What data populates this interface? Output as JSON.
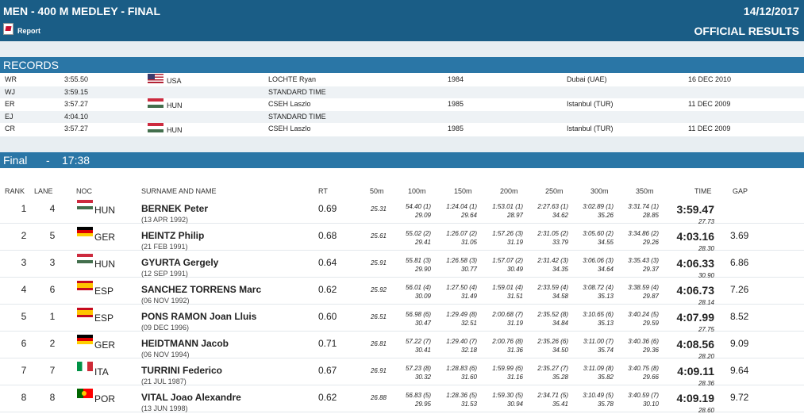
{
  "header": {
    "title": "MEN - 400 M MEDLEY - FINAL",
    "date": "14/12/2017",
    "official": "OFFICIAL RESULTS",
    "report_label": "Report"
  },
  "records": {
    "title": "RECORDS",
    "rows": [
      {
        "code": "WR",
        "time": "3:55.50",
        "noc": "USA",
        "flag": "usa",
        "name": "LOCHTE Ryan",
        "year": "1984",
        "place": "Dubai (UAE)",
        "date": "16 DEC 2010"
      },
      {
        "code": "WJ",
        "time": "3:59.15",
        "noc": "",
        "flag": "",
        "name": "STANDARD TIME",
        "year": "",
        "place": "",
        "date": ""
      },
      {
        "code": "ER",
        "time": "3:57.27",
        "noc": "HUN",
        "flag": "hun",
        "name": "CSEH Laszlo",
        "year": "1985",
        "place": "Istanbul (TUR)",
        "date": "11 DEC 2009"
      },
      {
        "code": "EJ",
        "time": "4:04.10",
        "noc": "",
        "flag": "",
        "name": "STANDARD TIME",
        "year": "",
        "place": "",
        "date": ""
      },
      {
        "code": "CR",
        "time": "3:57.27",
        "noc": "HUN",
        "flag": "hun",
        "name": "CSEH Laszlo",
        "year": "1985",
        "place": "Istanbul (TUR)",
        "date": "11 DEC 2009"
      }
    ]
  },
  "final": {
    "label": "Final",
    "separator": "-",
    "time": "17:38"
  },
  "columns": {
    "rank": "RANK",
    "lane": "LANE",
    "noc": "NOC",
    "name": "SURNAME AND NAME",
    "rt": "RT",
    "s50": "50m",
    "s100": "100m",
    "s150": "150m",
    "s200": "200m",
    "s250": "250m",
    "s300": "300m",
    "s350": "350m",
    "time": "TIME",
    "gap": "GAP"
  },
  "results": [
    {
      "rank": "1",
      "lane": "4",
      "flag": "hun",
      "noc": "HUN",
      "name": "BERNEK Peter",
      "dob": "(13 APR 1992)",
      "rt": "0.69",
      "s50": "25.31",
      "splits": [
        [
          "54.40 (1)",
          "29.09"
        ],
        [
          "1:24.04 (1)",
          "29.64"
        ],
        [
          "1:53.01 (1)",
          "28.97"
        ],
        [
          "2:27.63 (1)",
          "34.62"
        ],
        [
          "3:02.89 (1)",
          "35.26"
        ],
        [
          "3:31.74 (1)",
          "28.85"
        ]
      ],
      "time": "3:59.47",
      "last": "27.73",
      "gap": ""
    },
    {
      "rank": "2",
      "lane": "5",
      "flag": "ger",
      "noc": "GER",
      "name": "HEINTZ Philip",
      "dob": "(21 FEB 1991)",
      "rt": "0.68",
      "s50": "25.61",
      "splits": [
        [
          "55.02 (2)",
          "29.41"
        ],
        [
          "1:26.07 (2)",
          "31.05"
        ],
        [
          "1:57.26 (3)",
          "31.19"
        ],
        [
          "2:31.05 (2)",
          "33.79"
        ],
        [
          "3:05.60 (2)",
          "34.55"
        ],
        [
          "3:34.86 (2)",
          "29.26"
        ]
      ],
      "time": "4:03.16",
      "last": "28.30",
      "gap": "3.69"
    },
    {
      "rank": "3",
      "lane": "3",
      "flag": "hun",
      "noc": "HUN",
      "name": "GYURTA Gergely",
      "dob": "(12 SEP 1991)",
      "rt": "0.64",
      "s50": "25.91",
      "splits": [
        [
          "55.81 (3)",
          "29.90"
        ],
        [
          "1:26.58 (3)",
          "30.77"
        ],
        [
          "1:57.07 (2)",
          "30.49"
        ],
        [
          "2:31.42 (3)",
          "34.35"
        ],
        [
          "3:06.06 (3)",
          "34.64"
        ],
        [
          "3:35.43 (3)",
          "29.37"
        ]
      ],
      "time": "4:06.33",
      "last": "30.90",
      "gap": "6.86"
    },
    {
      "rank": "4",
      "lane": "6",
      "flag": "esp",
      "noc": "ESP",
      "name": "SANCHEZ TORRENS Marc",
      "dob": "(06 NOV 1992)",
      "rt": "0.62",
      "s50": "25.92",
      "splits": [
        [
          "56.01 (4)",
          "30.09"
        ],
        [
          "1:27.50 (4)",
          "31.49"
        ],
        [
          "1:59.01 (4)",
          "31.51"
        ],
        [
          "2:33.59 (4)",
          "34.58"
        ],
        [
          "3:08.72 (4)",
          "35.13"
        ],
        [
          "3:38.59 (4)",
          "29.87"
        ]
      ],
      "time": "4:06.73",
      "last": "28.14",
      "gap": "7.26"
    },
    {
      "rank": "5",
      "lane": "1",
      "flag": "esp",
      "noc": "ESP",
      "name": "PONS RAMON Joan Lluis",
      "dob": "(09 DEC 1996)",
      "rt": "0.60",
      "s50": "26.51",
      "splits": [
        [
          "56.98 (6)",
          "30.47"
        ],
        [
          "1:29.49 (8)",
          "32.51"
        ],
        [
          "2:00.68 (7)",
          "31.19"
        ],
        [
          "2:35.52 (8)",
          "34.84"
        ],
        [
          "3:10.65 (6)",
          "35.13"
        ],
        [
          "3:40.24 (5)",
          "29.59"
        ]
      ],
      "time": "4:07.99",
      "last": "27.75",
      "gap": "8.52"
    },
    {
      "rank": "6",
      "lane": "2",
      "flag": "ger",
      "noc": "GER",
      "name": "HEIDTMANN Jacob",
      "dob": "(06 NOV 1994)",
      "rt": "0.71",
      "s50": "26.81",
      "splits": [
        [
          "57.22 (7)",
          "30.41"
        ],
        [
          "1:29.40 (7)",
          "32.18"
        ],
        [
          "2:00.76 (8)",
          "31.36"
        ],
        [
          "2:35.26 (6)",
          "34.50"
        ],
        [
          "3:11.00 (7)",
          "35.74"
        ],
        [
          "3:40.36 (6)",
          "29.36"
        ]
      ],
      "time": "4:08.56",
      "last": "28.20",
      "gap": "9.09"
    },
    {
      "rank": "7",
      "lane": "7",
      "flag": "ita",
      "noc": "ITA",
      "name": "TURRINI Federico",
      "dob": "(21 JUL 1987)",
      "rt": "0.67",
      "s50": "26.91",
      "splits": [
        [
          "57.23 (8)",
          "30.32"
        ],
        [
          "1:28.83 (6)",
          "31.60"
        ],
        [
          "1:59.99 (6)",
          "31.16"
        ],
        [
          "2:35.27 (7)",
          "35.28"
        ],
        [
          "3:11.09 (8)",
          "35.82"
        ],
        [
          "3:40.75 (8)",
          "29.66"
        ]
      ],
      "time": "4:09.11",
      "last": "28.36",
      "gap": "9.64"
    },
    {
      "rank": "8",
      "lane": "8",
      "flag": "por",
      "noc": "POR",
      "name": "VITAL Joao Alexandre",
      "dob": "(13 JUN 1998)",
      "rt": "0.62",
      "s50": "26.88",
      "splits": [
        [
          "56.83 (5)",
          "29.95"
        ],
        [
          "1:28.36 (5)",
          "31.53"
        ],
        [
          "1:59.30 (5)",
          "30.94"
        ],
        [
          "2:34.71 (5)",
          "35.41"
        ],
        [
          "3:10.49 (5)",
          "35.78"
        ],
        [
          "3:40.59 (7)",
          "30.10"
        ]
      ],
      "time": "4:09.19",
      "last": "28.60",
      "gap": "9.72"
    }
  ]
}
